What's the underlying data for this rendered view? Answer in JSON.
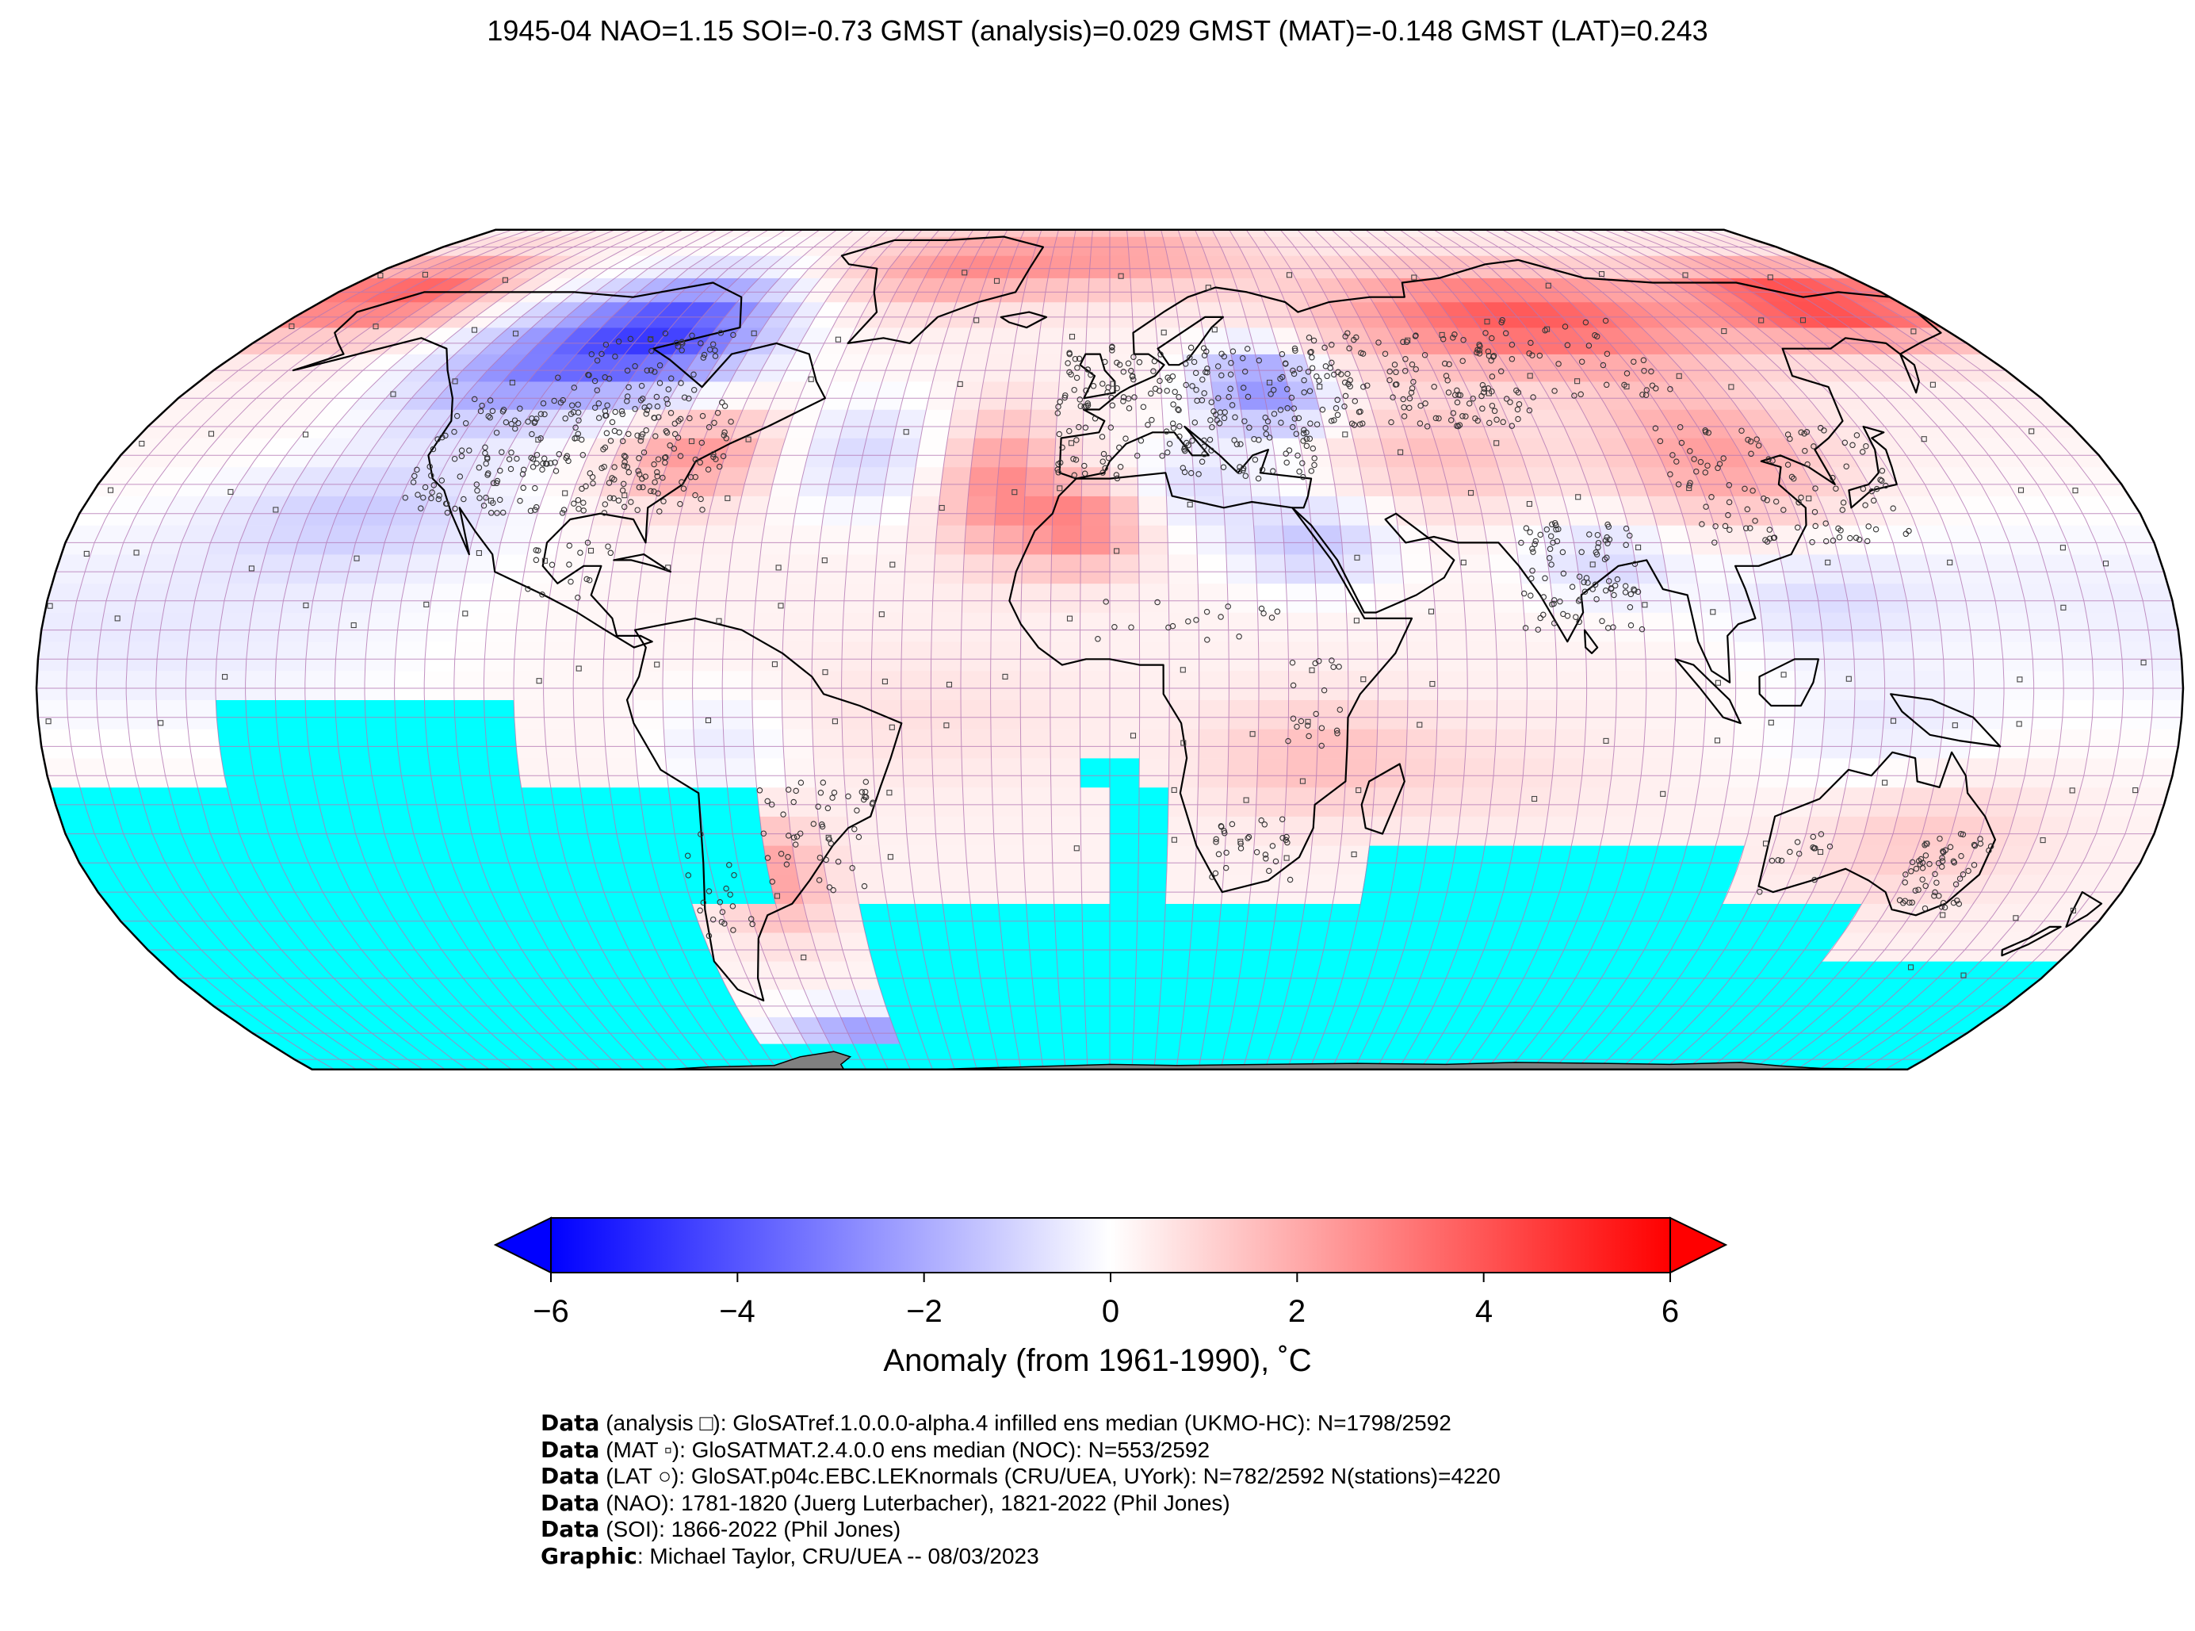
{
  "title": "1945-04 NAO=1.15 SOI=-0.73 GMST (analysis)=0.029 GMST (MAT)=-0.148 GMST (LAT)=0.243",
  "colorbar": {
    "label": "Anomaly (from 1961-1990), ˚C",
    "ticks": [
      "−6",
      "−4",
      "−2",
      "0",
      "2",
      "4",
      "6"
    ],
    "range": [
      -6,
      6
    ],
    "extend": "both",
    "colors": {
      "low": "#0000ff",
      "mid": "#ffffff",
      "high": "#ff0000"
    }
  },
  "colors": {
    "missing": "#00ffff",
    "antarctica": "#808080",
    "grid": "#b478b4",
    "coast": "#000000"
  },
  "credits": [
    {
      "bold": "Data",
      "text": " (analysis □): GloSATref.1.0.0.0-alpha.4 infilled ens median (UKMO-HC): N=1798/2592"
    },
    {
      "bold": "Data",
      "text": " (MAT ▫): GloSATMAT.2.4.0.0 ens median (NOC): N=553/2592"
    },
    {
      "bold": "Data",
      "text": " (LAT ○): GloSAT.p04c.EBC.LEKnormals (CRU/UEA, UYork): N=782/2592 N(stations)=4220"
    },
    {
      "bold": "Data",
      "text": " (NAO): 1781-1820 (Juerg Luterbacher), 1821-2022 (Phil Jones)"
    },
    {
      "bold": "Data",
      "text": " (SOI): 1866-2022 (Phil Jones)"
    },
    {
      "bold": "Graphic",
      "text": ": Michael Taylor, CRU/UEA -- 08/03/2023"
    }
  ]
}
